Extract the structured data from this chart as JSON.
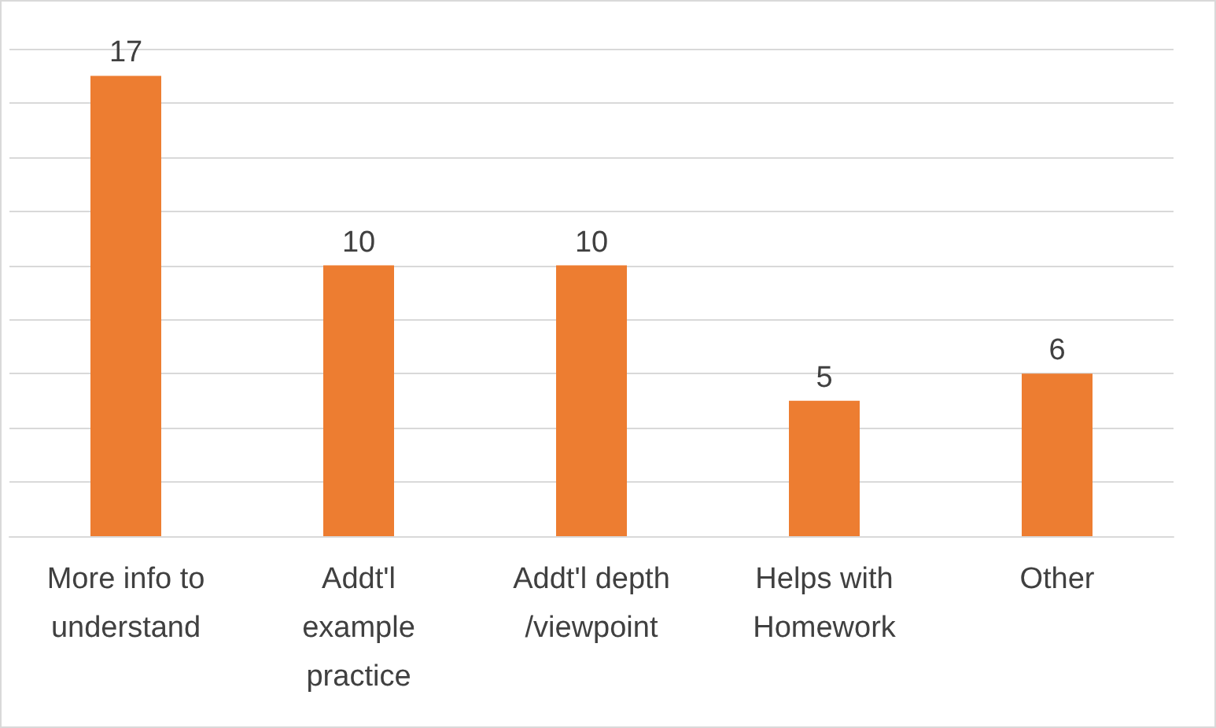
{
  "chart_data": {
    "type": "bar",
    "categories": [
      "More info to\nunderstand",
      "Addt'l\nexample\npractice",
      "Addt'l depth\n/viewpoint",
      "Helps with\nHomework",
      "Other"
    ],
    "values": [
      17,
      10,
      10,
      5,
      6
    ],
    "color": "#ed7d31",
    "data_labels": true,
    "ylim": [
      0,
      18
    ],
    "yticks": [
      {
        "value": 0,
        "label": null
      },
      {
        "value": 2,
        "label": null
      },
      {
        "value": 4,
        "label": null
      },
      {
        "value": 6,
        "label": null
      },
      {
        "value": 8,
        "label": null
      },
      {
        "value": 10,
        "label": null
      },
      {
        "value": 12,
        "label": null
      },
      {
        "value": 14,
        "label": null
      },
      {
        "value": 16,
        "label": null
      },
      {
        "value": 18,
        "label": null
      }
    ],
    "grid": "y",
    "tick_labels": "x"
  }
}
